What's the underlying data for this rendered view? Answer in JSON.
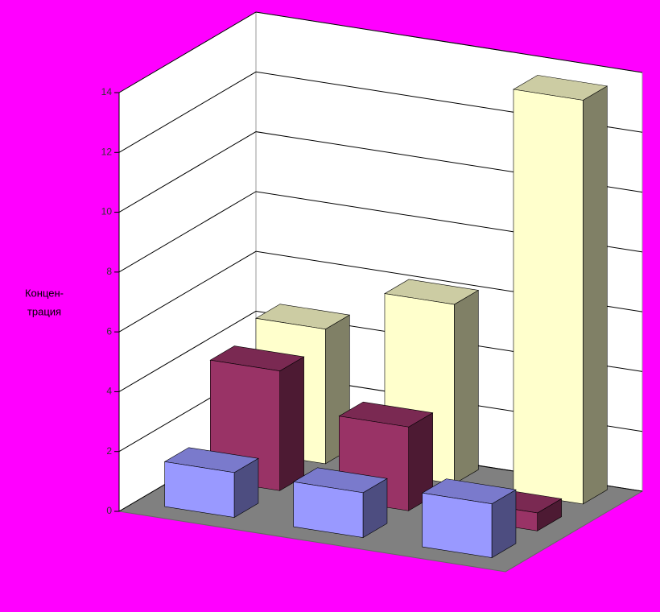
{
  "chart_data": {
    "type": "bar3d",
    "ylabel": [
      "Концен-",
      "трация"
    ],
    "categories": [
      null,
      null,
      null
    ],
    "series": [
      {
        "color": "#9999ff",
        "values": [
          1.5,
          1.5,
          1.8
        ]
      },
      {
        "color": "#993366",
        "values": [
          4,
          2.8,
          0.6
        ]
      },
      {
        "color": "#ffffcc",
        "values": [
          4.5,
          6,
          13.5
        ]
      }
    ],
    "ylim": [
      0,
      14
    ],
    "yticks": [
      0,
      2,
      4,
      6,
      8,
      10,
      12,
      14
    ],
    "grid": true
  }
}
